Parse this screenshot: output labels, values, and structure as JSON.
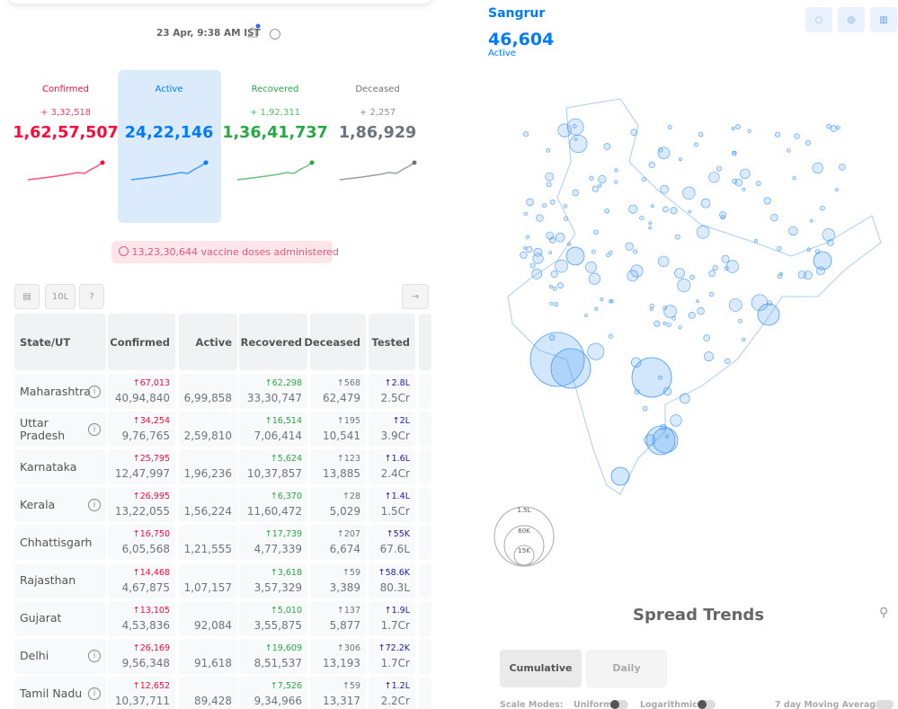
{
  "timestamp": "23 Apr, 9:38 AM IST",
  "stats": [
    {
      "label": "Confirmed",
      "delta": "+ 3,32,518",
      "value": "1,62,57,507"
    },
    {
      "label": "Active",
      "value": "24,22,146"
    },
    {
      "label": "Recovered",
      "delta": "+ 1,92,311",
      "value": "1,36,41,737"
    },
    {
      "label": "Deceased",
      "delta": "+ 2,257",
      "value": "1,86,929"
    }
  ],
  "vaccine": "13,23,30,644 vaccine doses administered",
  "toolbar": {
    "per_population": "10L"
  },
  "table": {
    "headers": [
      "State/UT",
      "Confirmed",
      "Active",
      "Recovered",
      "Deceased",
      "Tested"
    ],
    "rows": [
      [
        "Maharashtra",
        "↑67,013",
        "40,94,840",
        "6,99,858",
        "↑62,298",
        "33,30,747",
        "↑568",
        "62,479",
        "↑2.8L",
        "2.5Cr"
      ],
      [
        "Uttar Pradesh",
        "↑34,254",
        "9,76,765",
        "2,59,810",
        "↑16,514",
        "7,06,414",
        "↑195",
        "10,541",
        "↑2L",
        "3.9Cr"
      ],
      [
        "Karnataka",
        "↑25,795",
        "12,47,997",
        "1,96,236",
        "↑5,624",
        "10,37,857",
        "↑123",
        "13,885",
        "↑1.6L",
        "2.4Cr"
      ],
      [
        "Kerala",
        "↑26,995",
        "13,22,055",
        "1,56,224",
        "↑6,370",
        "11,60,472",
        "↑28",
        "5,029",
        "↑1.4L",
        "1.5Cr"
      ],
      [
        "Chhattisgarh",
        "↑16,750",
        "6,05,568",
        "1,21,555",
        "↑17,739",
        "4,77,339",
        "↑207",
        "6,674",
        "↑55K",
        "67.6L"
      ],
      [
        "Rajasthan",
        "↑14,468",
        "4,67,875",
        "1,07,157",
        "↑3,618",
        "3,57,329",
        "↑59",
        "3,389",
        "↑58.6K",
        "80.3L"
      ],
      [
        "Gujarat",
        "↑13,105",
        "4,53,836",
        "92,084",
        "↑5,010",
        "3,55,875",
        "↑137",
        "5,877",
        "↑1.9L",
        "1.7Cr"
      ],
      [
        "Delhi",
        "↑26,169",
        "9,56,348",
        "91,618",
        "↑19,609",
        "8,51,537",
        "↑306",
        "13,193",
        "↑72.2K",
        "1.7Cr"
      ],
      [
        "Tamil Nadu",
        "↑12,652",
        "10,37,711",
        "89,428",
        "↑7,526",
        "9,34,966",
        "↑59",
        "13,317",
        "↑1.2L",
        "2.2Cr"
      ]
    ]
  },
  "map": {
    "district": "Sangrur",
    "value": "46,604",
    "metric": "Active",
    "legend": [
      "1.5L",
      "60K",
      "15K"
    ]
  },
  "trends": {
    "title": "Spread Trends",
    "tabs": [
      "Cumulative",
      "Daily"
    ],
    "scale_label": "Scale Modes:",
    "options": [
      "Uniform",
      "Logarithmic"
    ],
    "moving_average": "7 day Moving Average"
  }
}
